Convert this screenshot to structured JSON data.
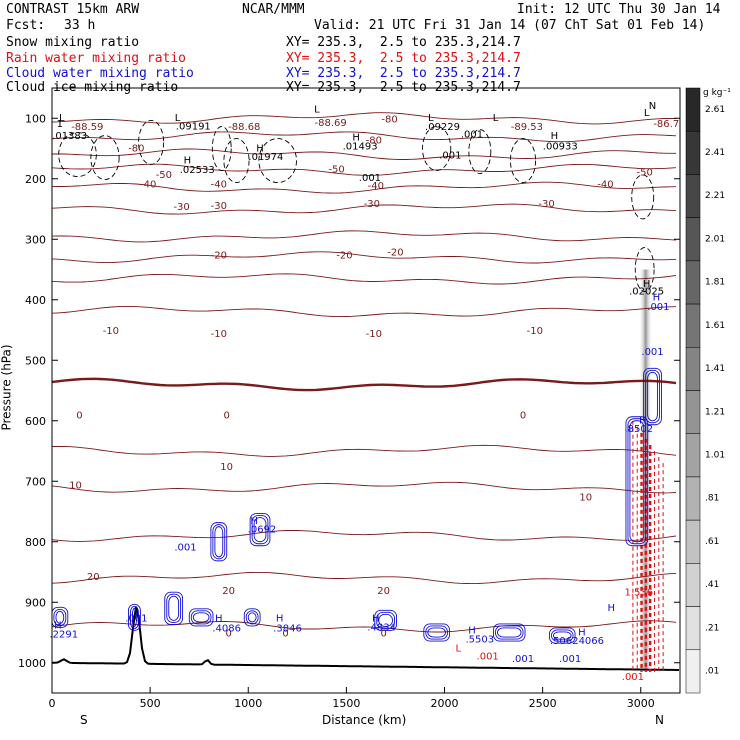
{
  "header": {
    "left_title": "CONTRAST 15km ARW",
    "center_title": "NCAR/MMM",
    "init": "Init: 12 UTC Thu 30 Jan 14",
    "fcst_label": "Fcst:",
    "fcst_value": "33 h",
    "valid": "Valid: 21 UTC Fri 31 Jan 14 (07 ChT Sat 01 Feb 14)",
    "fields": [
      {
        "name": "Snow mixing ratio",
        "xy": "XY= 235.3,  2.5 to 235.3,214.7",
        "color": "#000000"
      },
      {
        "name": "Rain water mixing ratio",
        "xy": "XY= 235.3,  2.5 to 235.3,214.7",
        "color": "#e01010"
      },
      {
        "name": "Cloud water mixing ratio",
        "xy": "XY= 235.3,  2.5 to 235.3,214.7",
        "color": "#1010d0"
      },
      {
        "name": "Cloud ice mixing ratio",
        "xy": "XY= 235.3,  2.5 to 235.3,214.7",
        "color": "#000000"
      }
    ]
  },
  "chart_data": {
    "type": "contour-cross-section",
    "xlabel": "Distance (km)",
    "ylabel": "Pressure (hPa)",
    "xlim": [
      0,
      3200
    ],
    "ylim": [
      1050,
      50
    ],
    "x_ticks": [
      0,
      500,
      1000,
      1500,
      2000,
      2500,
      3000
    ],
    "y_ticks": [
      100,
      200,
      300,
      400,
      500,
      600,
      700,
      800,
      900,
      1000
    ],
    "x_end_labels": [
      "S",
      "N"
    ],
    "colorbar": {
      "unit": "g kg⁻¹",
      "labels": [
        "2.61",
        "2.41",
        "2.21",
        "2.01",
        "1.81",
        "1.61",
        "1.41",
        "1.21",
        "1.01",
        ".81",
        ".61",
        ".41",
        ".21",
        ".01"
      ]
    },
    "temperature_contours": [
      {
        "level": -80,
        "p": 100
      },
      {
        "level": -70,
        "p": 130
      },
      {
        "level": -60,
        "p": 160
      },
      {
        "level": -50,
        "p": 185
      },
      {
        "level": -40,
        "p": 215
      },
      {
        "level": -30,
        "p": 250
      },
      {
        "level": -20,
        "p": 295
      },
      {
        "level": -10,
        "p": 330
      },
      {
        "level": -20,
        "p": 365
      },
      {
        "level": -10,
        "p": 420
      },
      {
        "level": 0,
        "p": 540
      },
      {
        "level": 10,
        "p": 650
      },
      {
        "level": 10,
        "p": 710
      },
      {
        "level": 20,
        "p": 790
      },
      {
        "level": 20,
        "p": 860
      },
      {
        "level": 0,
        "p": 940
      }
    ],
    "temp_labels": [
      {
        "t": "-88.59",
        "x": 180,
        "p": 113
      },
      {
        "t": "-80",
        "x": 430,
        "p": 148
      },
      {
        "t": "-88.68",
        "x": 980,
        "p": 113
      },
      {
        "t": "-88.69",
        "x": 1420,
        "p": 106
      },
      {
        "t": "-80",
        "x": 1720,
        "p": 100
      },
      {
        "t": "-80",
        "x": 1640,
        "p": 135
      },
      {
        "t": "-89.53",
        "x": 2420,
        "p": 113
      },
      {
        "t": "-86.7",
        "x": 3130,
        "p": 108
      },
      {
        "t": "-50",
        "x": 570,
        "p": 192
      },
      {
        "t": "-40",
        "x": 490,
        "p": 208
      },
      {
        "t": "-40",
        "x": 850,
        "p": 208
      },
      {
        "t": "-50",
        "x": 1450,
        "p": 183
      },
      {
        "t": "-40",
        "x": 1650,
        "p": 210
      },
      {
        "t": "-40",
        "x": 2820,
        "p": 208
      },
      {
        "t": "-50",
        "x": 3020,
        "p": 188
      },
      {
        "t": "-30",
        "x": 660,
        "p": 245
      },
      {
        "t": "-30",
        "x": 850,
        "p": 243
      },
      {
        "t": "-30",
        "x": 1630,
        "p": 240
      },
      {
        "t": "-30",
        "x": 2520,
        "p": 240
      },
      {
        "t": "-20",
        "x": 850,
        "p": 325
      },
      {
        "t": "-20",
        "x": 1490,
        "p": 325
      },
      {
        "t": "-20",
        "x": 1750,
        "p": 320
      },
      {
        "t": "-10",
        "x": 300,
        "p": 450
      },
      {
        "t": "-10",
        "x": 850,
        "p": 455
      },
      {
        "t": "-10",
        "x": 1640,
        "p": 455
      },
      {
        "t": "-10",
        "x": 2460,
        "p": 450
      },
      {
        "t": "0",
        "x": 140,
        "p": 590
      },
      {
        "t": "0",
        "x": 890,
        "p": 590
      },
      {
        "t": "0",
        "x": 2400,
        "p": 590
      },
      {
        "t": "10",
        "x": 120,
        "p": 705
      },
      {
        "t": "10",
        "x": 890,
        "p": 675
      },
      {
        "t": "10",
        "x": 2720,
        "p": 725
      },
      {
        "t": "20",
        "x": 210,
        "p": 857
      },
      {
        "t": "20",
        "x": 900,
        "p": 880
      },
      {
        "t": "20",
        "x": 1690,
        "p": 880
      },
      {
        "t": "0",
        "x": 900,
        "p": 950
      },
      {
        "t": "0",
        "x": 1190,
        "p": 950
      },
      {
        "t": "0",
        "x": 1690,
        "p": 950
      }
    ],
    "snow_labels": [
      {
        "t": "L",
        "x": 50,
        "p": 98
      },
      {
        "t": "1",
        "x": 40,
        "p": 108
      },
      {
        "t": ".01383",
        "x": 90,
        "p": 128
      },
      {
        "t": "L",
        "x": 640,
        "p": 98
      },
      {
        "t": ".09191",
        "x": 720,
        "p": 112
      },
      {
        "t": "H",
        "x": 690,
        "p": 168
      },
      {
        "t": ".02533",
        "x": 740,
        "p": 184
      },
      {
        "t": "H",
        "x": 1060,
        "p": 148
      },
      {
        "t": ".01974",
        "x": 1090,
        "p": 162
      },
      {
        "t": "L",
        "x": 1350,
        "p": 84
      },
      {
        "t": "H",
        "x": 1550,
        "p": 130
      },
      {
        "t": ".01493",
        "x": 1570,
        "p": 145
      },
      {
        "t": ".001",
        "x": 1620,
        "p": 197
      },
      {
        "t": "L",
        "x": 1930,
        "p": 98
      },
      {
        "t": ".09229",
        "x": 1990,
        "p": 113
      },
      {
        "t": ".001",
        "x": 2140,
        "p": 125
      },
      {
        "t": ".001",
        "x": 2030,
        "p": 160
      },
      {
        "t": "L",
        "x": 2260,
        "p": 98
      },
      {
        "t": "H",
        "x": 2560,
        "p": 128
      },
      {
        "t": ".00933",
        "x": 2590,
        "p": 145
      },
      {
        "t": "L",
        "x": 3030,
        "p": 90
      },
      {
        "t": "N",
        "x": 3060,
        "p": 78
      },
      {
        "t": "H",
        "x": 3030,
        "p": 372
      },
      {
        "t": ".02025",
        "x": 3030,
        "p": 385
      }
    ],
    "cloud_water_labels": [
      {
        "t": ".001",
        "x": 3090,
        "p": 410
      },
      {
        "t": "H",
        "x": 3080,
        "p": 395
      },
      {
        "t": ".001",
        "x": 3060,
        "p": 485
      },
      {
        "t": ".8502",
        "x": 2990,
        "p": 612
      },
      {
        "t": "H",
        "x": 3010,
        "p": 598
      },
      {
        "t": "H",
        "x": 1030,
        "p": 764
      },
      {
        "t": ".0692",
        "x": 1070,
        "p": 778
      },
      {
        "t": ".001",
        "x": 680,
        "p": 808
      },
      {
        "t": "H",
        "x": 30,
        "p": 937
      },
      {
        "t": ".2291",
        "x": 60,
        "p": 952
      },
      {
        "t": ".001",
        "x": 430,
        "p": 925
      },
      {
        "t": "H",
        "x": 850,
        "p": 925
      },
      {
        "t": ".4086",
        "x": 890,
        "p": 942
      },
      {
        "t": "H",
        "x": 1160,
        "p": 925
      },
      {
        "t": ".3846",
        "x": 1200,
        "p": 942
      },
      {
        "t": "H",
        "x": 1650,
        "p": 925
      },
      {
        "t": ".4834",
        "x": 1680,
        "p": 940
      },
      {
        "t": "H",
        "x": 2140,
        "p": 945
      },
      {
        "t": ".5503",
        "x": 2180,
        "p": 960
      },
      {
        "t": "H",
        "x": 2700,
        "p": 948
      },
      {
        "t": ".4066",
        "x": 2740,
        "p": 962
      },
      {
        "t": "H",
        "x": 2850,
        "p": 908
      },
      {
        "t": ".001",
        "x": 2400,
        "p": 992
      },
      {
        "t": ".5062",
        "x": 2610,
        "p": 962
      },
      {
        "t": ".001",
        "x": 2640,
        "p": 992
      }
    ],
    "rain_labels": [
      {
        "t": "1.536",
        "x": 2990,
        "p": 882
      },
      {
        "t": ".001",
        "x": 2220,
        "p": 988
      },
      {
        "t": ".001",
        "x": 2960,
        "p": 1022
      },
      {
        "t": "L",
        "x": 2070,
        "p": 975
      }
    ],
    "shaded_region": {
      "x": [
        2990,
        3060
      ],
      "p_top": 350,
      "p_bottom": 1010
    }
  }
}
